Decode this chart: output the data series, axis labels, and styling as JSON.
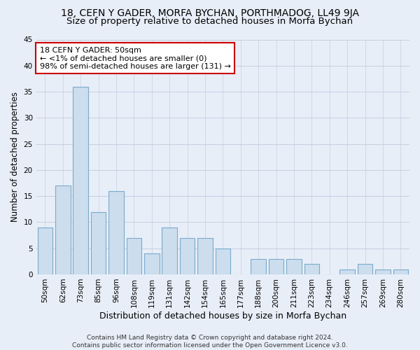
{
  "title": "18, CEFN Y GADER, MORFA BYCHAN, PORTHMADOG, LL49 9JA",
  "subtitle": "Size of property relative to detached houses in Morfa Bychan",
  "xlabel": "Distribution of detached houses by size in Morfa Bychan",
  "ylabel": "Number of detached properties",
  "categories": [
    "50sqm",
    "62sqm",
    "73sqm",
    "85sqm",
    "96sqm",
    "108sqm",
    "119sqm",
    "131sqm",
    "142sqm",
    "154sqm",
    "165sqm",
    "177sqm",
    "188sqm",
    "200sqm",
    "211sqm",
    "223sqm",
    "234sqm",
    "246sqm",
    "257sqm",
    "269sqm",
    "280sqm"
  ],
  "values": [
    9,
    17,
    36,
    12,
    16,
    7,
    4,
    9,
    7,
    7,
    5,
    0,
    3,
    3,
    3,
    2,
    0,
    1,
    2,
    1,
    1
  ],
  "bar_color": "#ccdded",
  "bar_edge_color": "#7aabcc",
  "background_color": "#e8eef8",
  "grid_color": "#c8cee0",
  "annotation_line1": "18 CEFN Y GADER: 50sqm",
  "annotation_line2": "← <1% of detached houses are smaller (0)",
  "annotation_line3": "98% of semi-detached houses are larger (131) →",
  "annotation_box_facecolor": "#ffffff",
  "annotation_box_edgecolor": "#cc0000",
  "footer": "Contains HM Land Registry data © Crown copyright and database right 2024.\nContains public sector information licensed under the Open Government Licence v3.0.",
  "ylim": [
    0,
    45
  ],
  "yticks": [
    0,
    5,
    10,
    15,
    20,
    25,
    30,
    35,
    40,
    45
  ],
  "title_fontsize": 10,
  "subtitle_fontsize": 9.5,
  "xlabel_fontsize": 9,
  "ylabel_fontsize": 8.5,
  "tick_fontsize": 7.5,
  "annotation_fontsize": 8,
  "footer_fontsize": 6.5
}
